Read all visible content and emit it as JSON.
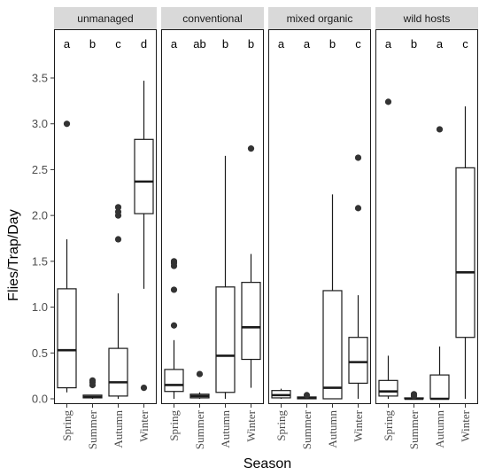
{
  "chart_data": {
    "type": "boxplot",
    "xlabel": "Season",
    "ylabel": "Flies/Trap/Day",
    "ylim": [
      0,
      3.8
    ],
    "yticks": [
      0.0,
      0.5,
      1.0,
      1.5,
      2.0,
      2.5,
      3.0,
      3.5
    ],
    "ytick_labels": [
      "0.0",
      "0.5",
      "1.0",
      "1.5",
      "2.0",
      "2.5",
      "3.0",
      "3.5"
    ],
    "categories": [
      "Spring",
      "Summer",
      "Autumn",
      "Winter"
    ],
    "grid": false,
    "facets": [
      {
        "label": "unmanaged",
        "groups": [
          {
            "season": "Spring",
            "letter": "a",
            "min": 0.07,
            "q1": 0.12,
            "median": 0.53,
            "q3": 1.2,
            "max": 1.74,
            "outliers": [
              3.0
            ]
          },
          {
            "season": "Summer",
            "letter": "b",
            "min": 0.0,
            "q1": 0.01,
            "median": 0.02,
            "q3": 0.04,
            "max": 0.04,
            "outliers": [
              0.15,
              0.18,
              0.2
            ]
          },
          {
            "season": "Autumn",
            "letter": "c",
            "min": 0.0,
            "q1": 0.03,
            "median": 0.18,
            "q3": 0.55,
            "max": 1.15,
            "outliers": [
              1.74,
              2.0,
              2.04,
              2.09
            ]
          },
          {
            "season": "Winter",
            "letter": "d",
            "min": 1.2,
            "q1": 2.02,
            "median": 2.37,
            "q3": 2.83,
            "max": 3.47,
            "outliers": [
              0.12
            ]
          }
        ]
      },
      {
        "label": "conventional",
        "groups": [
          {
            "season": "Spring",
            "letter": "a",
            "min": 0.0,
            "q1": 0.08,
            "median": 0.15,
            "q3": 0.32,
            "max": 0.64,
            "outliers": [
              0.8,
              1.19,
              1.45,
              1.48,
              1.5
            ]
          },
          {
            "season": "Summer",
            "letter": "ab",
            "min": 0.0,
            "q1": 0.01,
            "median": 0.03,
            "q3": 0.05,
            "max": 0.07,
            "outliers": [
              0.27
            ]
          },
          {
            "season": "Autumn",
            "letter": "b",
            "min": 0.0,
            "q1": 0.07,
            "median": 0.47,
            "q3": 1.22,
            "max": 2.65,
            "outliers": []
          },
          {
            "season": "Winter",
            "letter": "b",
            "min": 0.12,
            "q1": 0.43,
            "median": 0.78,
            "q3": 1.27,
            "max": 1.58,
            "outliers": [
              2.73
            ]
          }
        ]
      },
      {
        "label": "mixed organic",
        "groups": [
          {
            "season": "Spring",
            "letter": "a",
            "min": 0.0,
            "q1": 0.01,
            "median": 0.04,
            "q3": 0.09,
            "max": 0.11,
            "outliers": []
          },
          {
            "season": "Summer",
            "letter": "a",
            "min": 0.0,
            "q1": 0.0,
            "median": 0.01,
            "q3": 0.02,
            "max": 0.03,
            "outliers": [
              0.04
            ]
          },
          {
            "season": "Autumn",
            "letter": "b",
            "min": 0.0,
            "q1": 0.0,
            "median": 0.12,
            "q3": 1.18,
            "max": 2.23,
            "outliers": []
          },
          {
            "season": "Winter",
            "letter": "c",
            "min": 0.0,
            "q1": 0.17,
            "median": 0.4,
            "q3": 0.67,
            "max": 1.13,
            "outliers": [
              2.08,
              2.63
            ]
          }
        ]
      },
      {
        "label": "wild hosts",
        "groups": [
          {
            "season": "Spring",
            "letter": "a",
            "min": 0.0,
            "q1": 0.03,
            "median": 0.08,
            "q3": 0.2,
            "max": 0.47,
            "outliers": [
              3.24
            ]
          },
          {
            "season": "Summer",
            "letter": "b",
            "min": 0.0,
            "q1": 0.0,
            "median": 0.0,
            "q3": 0.01,
            "max": 0.01,
            "outliers": [
              0.03,
              0.05
            ]
          },
          {
            "season": "Autumn",
            "letter": "a",
            "min": 0.0,
            "q1": 0.0,
            "median": 0.0,
            "q3": 0.26,
            "max": 0.57,
            "outliers": [
              2.94
            ]
          },
          {
            "season": "Winter",
            "letter": "c",
            "min": 0.0,
            "q1": 0.67,
            "median": 1.38,
            "q3": 2.52,
            "max": 3.19,
            "outliers": []
          }
        ]
      }
    ]
  }
}
